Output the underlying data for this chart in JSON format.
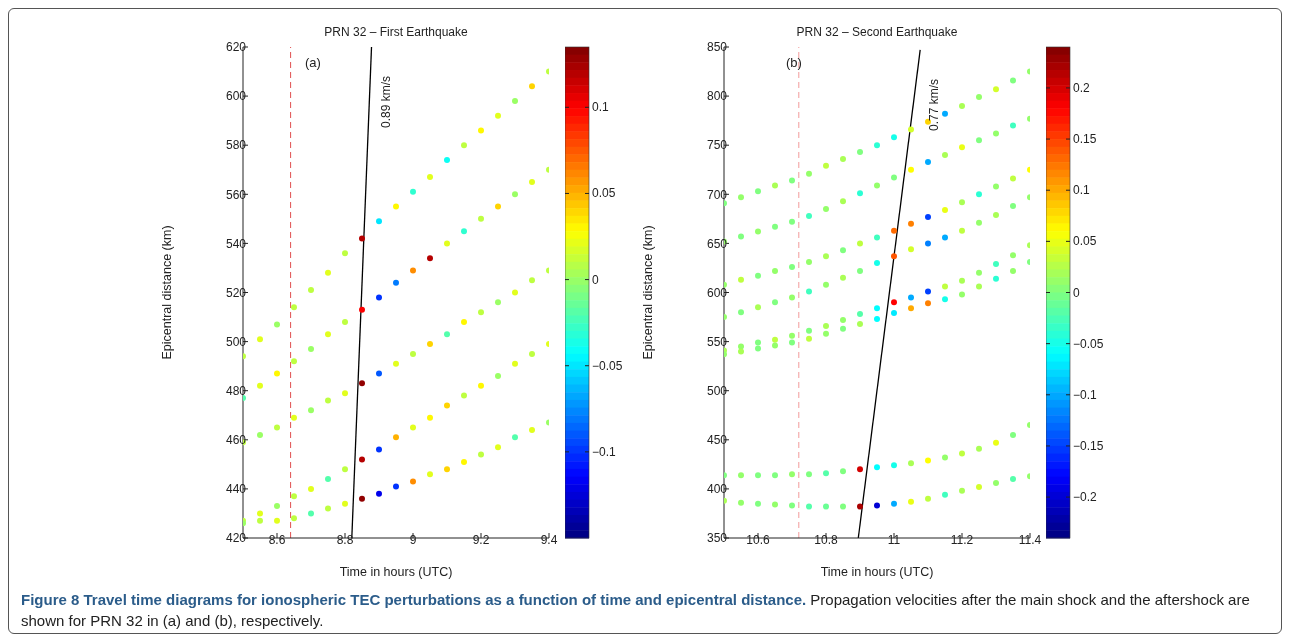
{
  "chart_data": [
    {
      "type": "scatter",
      "title": "PRN 32 – First Earthquake",
      "xlabel": "Time in hours (UTC)",
      "ylabel": "Epicentral distance (km)",
      "annotations": [
        "(a)",
        "0.89 km/s",
        "Figure 8 Travel time diagrams for ionospheric TEC perturbations as a function of time and epicentral distance.",
        "Propagation velocities after the main shock and the aftershock are shown for PRN 32 in (a) and (b), respectively."
      ],
      "x": [
        8.5,
        8.55,
        8.6,
        8.65,
        8.7,
        8.75,
        8.8,
        8.85,
        8.9,
        8.95,
        9,
        9.05,
        9.1,
        9.15,
        9.2,
        9.25,
        9.3,
        9.35,
        9.4
      ],
      "series": [
        {
          "values": [
            494,
            501,
            507,
            514,
            521,
            528,
            536,
            542,
            549,
            555,
            561,
            567,
            574,
            580,
            586,
            592,
            598,
            604,
            610
          ],
          "colors": [
            "#beff41",
            "#e2ff1d",
            "#9aff65",
            "#beff41",
            "#beff41",
            "#e2ff1d",
            "#beff41",
            "#b50000",
            "#00e6ff",
            "#fff800",
            "#2fffd0",
            "#e2ff1d",
            "#0bfff4",
            "#beff41",
            "#fff800",
            "#e2ff1d",
            "#9aff65",
            "#ffd400",
            "#beff41"
          ]
        },
        {
          "values": [
            477,
            482,
            487,
            492,
            497,
            503,
            508,
            513,
            518,
            524,
            529,
            534,
            540,
            545,
            550,
            555,
            560,
            565,
            570
          ],
          "colors": [
            "#53ffac",
            "#e2ff1d",
            "#fff800",
            "#beff41",
            "#9aff65",
            "#e2ff1d",
            "#beff41",
            "#fd0000",
            "#0033ff",
            "#007bff",
            "#ff8d00",
            "#b50000",
            "#e2ff1d",
            "#2fffd0",
            "#beff41",
            "#ffd400",
            "#9aff65",
            "#e2ff1d",
            "#beff41"
          ]
        },
        {
          "values": [
            459,
            462,
            465,
            469,
            472,
            476,
            479,
            483,
            487,
            491,
            495,
            499,
            503,
            508,
            512,
            516,
            520,
            525,
            529
          ],
          "colors": [
            "#beff41",
            "#9aff65",
            "#beff41",
            "#e2ff1d",
            "#9aff65",
            "#beff41",
            "#e2ff1d",
            "#910000",
            "#0057ff",
            "#e2ff1d",
            "#beff41",
            "#ffd400",
            "#53ffac",
            "#fff800",
            "#beff41",
            "#9aff65",
            "#e2ff1d",
            "#beff41",
            "#beff41"
          ]
        },
        {
          "values": [
            427,
            430,
            433,
            437,
            440,
            444,
            448,
            452,
            456,
            461,
            465,
            469,
            474,
            478,
            482,
            486,
            491,
            495,
            499
          ],
          "colors": [
            "#beff41",
            "#e2ff1d",
            "#9aff65",
            "#beff41",
            "#e2ff1d",
            "#53ffac",
            "#beff41",
            "#b50000",
            "#0033ff",
            "#ffb100",
            "#e2ff1d",
            "#fff800",
            "#ffd400",
            "#beff41",
            "#fff800",
            "#9aff65",
            "#e2ff1d",
            "#beff41",
            "#e2ff1d"
          ]
        },
        {
          "values": [
            426,
            427,
            427,
            428,
            430,
            432,
            434,
            436,
            438,
            441,
            443,
            446,
            448,
            451,
            454,
            457,
            461,
            464,
            467
          ],
          "colors": [
            "#9aff65",
            "#beff41",
            "#e2ff1d",
            "#beff41",
            "#53ffac",
            "#beff41",
            "#e2ff1d",
            "#910000",
            "#0000eb",
            "#0033ff",
            "#ff8d00",
            "#e2ff1d",
            "#ffd400",
            "#fff800",
            "#beff41",
            "#e2ff1d",
            "#53ffac",
            "#e2ff1d",
            "#9aff65"
          ]
        },
        {
          "type": "line",
          "color": "#000000",
          "marker": "none",
          "x": [
            8.82,
            8.878
          ],
          "values": [
            420,
            620
          ]
        }
      ],
      "ref_lines": [
        {
          "axis": "x",
          "value": 8.64,
          "color": "#e05050",
          "line_style": "dashed"
        }
      ],
      "xlim": [
        8.5,
        9.4
      ],
      "xticks": [
        8.6,
        8.8,
        9,
        9.2,
        9.4
      ],
      "ylim": [
        420,
        620
      ],
      "yticks": [
        420,
        440,
        460,
        480,
        500,
        520,
        540,
        560,
        580,
        600,
        620
      ],
      "clim": [
        -0.15,
        0.135
      ],
      "cticks": [
        -0.1,
        -0.05,
        0,
        0.05,
        0.1
      ],
      "marker": "circle",
      "grid": false,
      "legend": false
    },
    {
      "type": "scatter",
      "title": "PRN 32 – Second Earthquake",
      "xlabel": "Time in hours (UTC)",
      "ylabel": "Epicentral distance (km)",
      "annotations": [
        "(b)",
        "0.77 km/s"
      ],
      "x": [
        10.5,
        10.55,
        10.6,
        10.65,
        10.7,
        10.75,
        10.8,
        10.85,
        10.9,
        10.95,
        11,
        11.05,
        11.1,
        11.15,
        11.2,
        11.25,
        11.3,
        11.35,
        11.4
      ],
      "series": [
        {
          "values": [
            691,
            697,
            703,
            709,
            714,
            721,
            729,
            736,
            743,
            750,
            758,
            766,
            774,
            782,
            790,
            799,
            807,
            816,
            825
          ],
          "colors": [
            "#80ff80",
            "#94ff6a",
            "#80ff80",
            "#aaff55",
            "#80ff80",
            "#94ff6a",
            "#bfff40",
            "#aaff55",
            "#80ff80",
            "#2bffd4",
            "#15ffea",
            "#d4ff2b",
            "#ffd400",
            "#00aaff",
            "#aaff55",
            "#94ff6a",
            "#d4ff2b",
            "#80ff80",
            "#94ff6a"
          ]
        },
        {
          "values": [
            652,
            657,
            662,
            667,
            672,
            678,
            685,
            693,
            701,
            709,
            717,
            725,
            733,
            740,
            748,
            755,
            762,
            770,
            777
          ],
          "colors": [
            "#94ff6a",
            "#80ff80",
            "#94ff6a",
            "#80ff80",
            "#80ff80",
            "#40ffbf",
            "#94ff6a",
            "#aaff55",
            "#2bffd4",
            "#94ff6a",
            "#80ff80",
            "#ffff00",
            "#00aaff",
            "#aaff55",
            "#eaff15",
            "#80ff80",
            "#94ff6a",
            "#40ffbf",
            "#94ff6a"
          ]
        },
        {
          "values": [
            608,
            613,
            617,
            622,
            626,
            631,
            637,
            643,
            650,
            656,
            663,
            670,
            677,
            684,
            692,
            700,
            708,
            716,
            725
          ],
          "colors": [
            "#94ff6a",
            "#bfff40",
            "#80ff80",
            "#94ff6a",
            "#80ff80",
            "#94ff6a",
            "#aaff55",
            "#80ff80",
            "#bfff40",
            "#40ffbf",
            "#ff6a00",
            "#ff8000",
            "#0040ff",
            "#eaff15",
            "#aaff55",
            "#2bffd4",
            "#94ff6a",
            "#bfff40",
            "#ffff00"
          ]
        },
        {
          "values": [
            575,
            580,
            585,
            590,
            595,
            601,
            608,
            615,
            622,
            630,
            637,
            644,
            650,
            656,
            663,
            671,
            679,
            688,
            697
          ],
          "colors": [
            "#94ff6a",
            "#80ff80",
            "#aaff55",
            "#80ff80",
            "#94ff6a",
            "#40ffbf",
            "#94ff6a",
            "#aaff55",
            "#80ff80",
            "#15ffea",
            "#ff5500",
            "#d4ff2b",
            "#0080ff",
            "#00aaff",
            "#bfff40",
            "#94ff6a",
            "#aaff55",
            "#80ff80",
            "#94ff6a"
          ]
        },
        {
          "values": [
            541,
            545,
            549,
            552,
            556,
            561,
            566,
            572,
            578,
            584,
            590,
            595,
            601,
            606,
            612,
            620,
            629,
            638,
            648
          ],
          "colors": [
            "#aaff55",
            "#94ff6a",
            "#80ff80",
            "#bfff40",
            "#94ff6a",
            "#80ff80",
            "#aaff55",
            "#94ff6a",
            "#55ffaa",
            "#00ffff",
            "#ff0000",
            "#00aaff",
            "#0040ff",
            "#bfff40",
            "#aaff55",
            "#94ff6a",
            "#40ffbf",
            "#94ff6a",
            "#aaff55"
          ]
        },
        {
          "values": [
            537,
            540,
            543,
            546,
            549,
            553,
            558,
            563,
            568,
            573,
            579,
            584,
            589,
            593,
            598,
            606,
            614,
            622,
            631
          ],
          "colors": [
            "#94ff6a",
            "#aaff55",
            "#80ff80",
            "#94ff6a",
            "#80ff80",
            "#bfff40",
            "#94ff6a",
            "#80ff80",
            "#aaff55",
            "#00ffff",
            "#00eaff",
            "#ffaa00",
            "#ff8000",
            "#15ffea",
            "#94ff6a",
            "#aaff55",
            "#2bffd4",
            "#94ff6a",
            "#80ff80"
          ]
        },
        {
          "values": [
            414,
            414,
            414,
            414,
            415,
            415,
            416,
            418,
            420,
            422,
            424,
            426,
            429,
            432,
            436,
            441,
            447,
            455,
            465
          ],
          "colors": [
            "#80ff80",
            "#94ff6a",
            "#80ff80",
            "#80ff80",
            "#94ff6a",
            "#80ff80",
            "#55ffaa",
            "#80ff80",
            "#d40000",
            "#00ffff",
            "#15ffea",
            "#aaff55",
            "#ffff00",
            "#94ff6a",
            "#bfff40",
            "#aaff55",
            "#eaff15",
            "#80ff80",
            "#94ff6a"
          ]
        },
        {
          "values": [
            388,
            386,
            385,
            384,
            383,
            382,
            382,
            382,
            382,
            383,
            385,
            387,
            390,
            394,
            398,
            402,
            406,
            410,
            413
          ],
          "colors": [
            "#aaff55",
            "#94ff6a",
            "#80ff80",
            "#94ff6a",
            "#80ff80",
            "#55ffaa",
            "#6aff94",
            "#80ff80",
            "#aa0000",
            "#0000d4",
            "#00aaff",
            "#eaff15",
            "#bfff40",
            "#40ffbf",
            "#aaff55",
            "#d4ff2b",
            "#94ff6a",
            "#55ffaa",
            "#94ff6a"
          ]
        },
        {
          "type": "line",
          "color": "#000000",
          "marker": "none",
          "x": [
            10.895,
            11.077
          ],
          "values": [
            350,
            847
          ]
        }
      ],
      "ref_lines": [
        {
          "axis": "x",
          "value": 10.72,
          "color": "#f29a9a",
          "line_style": "dashed"
        }
      ],
      "xlim": [
        10.5,
        11.4
      ],
      "xticks": [
        10.6,
        10.8,
        11,
        11.2,
        11.4
      ],
      "ylim": [
        350,
        850
      ],
      "yticks": [
        350,
        400,
        450,
        500,
        550,
        600,
        650,
        700,
        750,
        800,
        850
      ],
      "clim": [
        -0.24,
        0.24
      ],
      "cticks": [
        -0.2,
        -0.15,
        -0.1,
        -0.05,
        0,
        0.05,
        0.1,
        0.15,
        0.2
      ],
      "marker": "circle",
      "grid": false,
      "legend": false
    }
  ]
}
